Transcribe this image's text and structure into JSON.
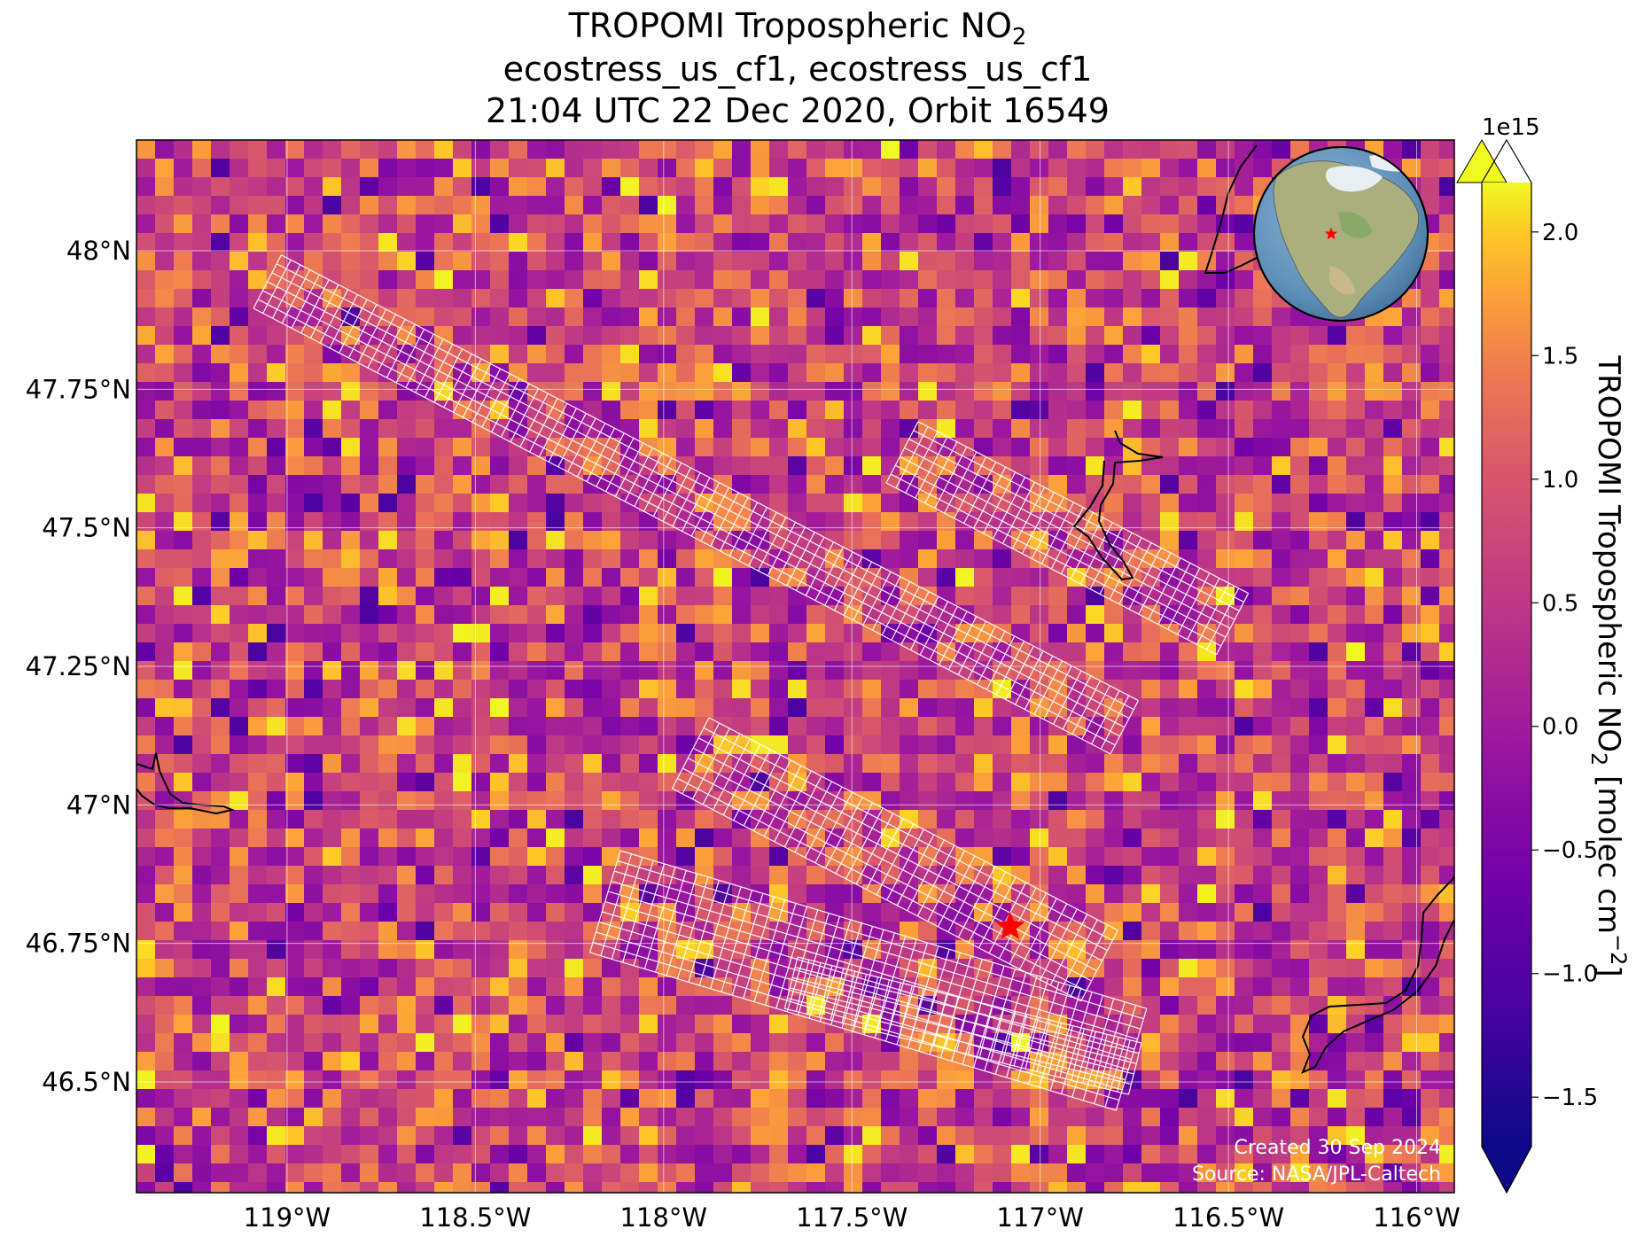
{
  "title": {
    "line1": "TROPOMI Tropospheric NO",
    "line1_sub": "2",
    "line2": "ecostress_us_cf1, ecostress_us_cf1",
    "line3": "21:04 UTC 22 Dec 2020, Orbit 16549"
  },
  "map": {
    "lon_range": [
      -119.4,
      -115.9
    ],
    "lat_range": [
      46.3,
      48.2
    ],
    "x_ticks": [
      {
        "value": -119.0,
        "label": "119°W"
      },
      {
        "value": -118.5,
        "label": "118.5°W"
      },
      {
        "value": -118.0,
        "label": "118°W"
      },
      {
        "value": -117.5,
        "label": "117.5°W"
      },
      {
        "value": -117.0,
        "label": "117°W"
      },
      {
        "value": -116.5,
        "label": "116.5°W"
      },
      {
        "value": -116.0,
        "label": "116°W"
      }
    ],
    "y_ticks": [
      {
        "value": 48.0,
        "label": "48°N"
      },
      {
        "value": 47.75,
        "label": "47.75°N"
      },
      {
        "value": 47.5,
        "label": "47.5°N"
      },
      {
        "value": 47.25,
        "label": "47.25°N"
      },
      {
        "value": 47.0,
        "label": "47°N"
      },
      {
        "value": 46.75,
        "label": "46.75°N"
      },
      {
        "value": 46.5,
        "label": "46.5°N"
      }
    ],
    "gridlines": true,
    "site_marker": {
      "lon": -117.08,
      "lat": 46.78,
      "color": "#ff0000",
      "icon": "star-icon"
    },
    "inset_globe": {
      "placement": "top-right",
      "icon": "globe-icon",
      "marker_color": "#ff0000"
    },
    "grid_color": "#ffffff"
  },
  "colorbar": {
    "label_main": "TROPOMI Tropospheric NO",
    "label_sub": "2",
    "label_units": " [molec cm",
    "label_sup": "−2",
    "label_end": "]",
    "multiplier": "1e15",
    "range": [
      -1.7,
      2.2
    ],
    "extend": "both",
    "colormap": "plasma",
    "ticks": [
      {
        "value": 2.0,
        "label": "2.0"
      },
      {
        "value": 1.5,
        "label": "1.5"
      },
      {
        "value": 1.0,
        "label": "1.0"
      },
      {
        "value": 0.5,
        "label": "0.5"
      },
      {
        "value": 0.0,
        "label": "0.0"
      },
      {
        "value": -0.5,
        "label": "−0.5"
      },
      {
        "value": -1.0,
        "label": "−1.0"
      },
      {
        "value": -1.5,
        "label": "−1.5"
      }
    ]
  },
  "credits": {
    "created": "Created 30 Sep 2024",
    "source": "Source: NASA/JPL-Caltech"
  }
}
